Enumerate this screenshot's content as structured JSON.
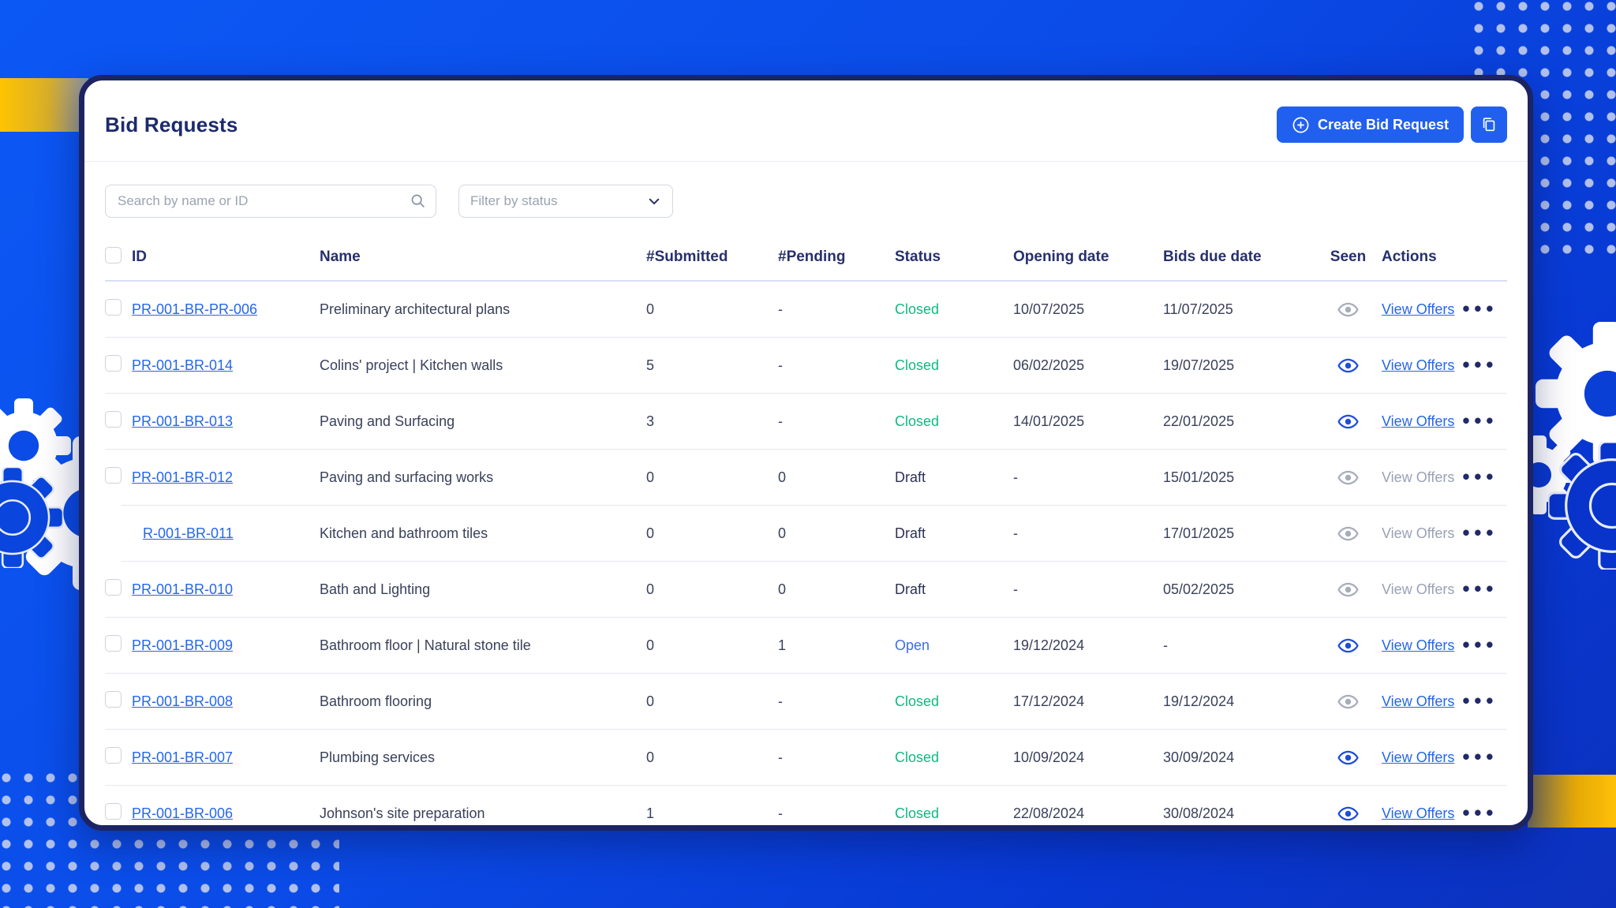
{
  "page": {
    "title": "Bid Requests"
  },
  "header": {
    "create_label": "Create Bid Request"
  },
  "filters": {
    "search_placeholder": "Search by name or ID",
    "status_placeholder": "Filter by status"
  },
  "icons": {
    "create": "plus-circle-icon",
    "duplicate": "copy-icon",
    "search": "search-icon",
    "filter": "chevron-down-icon",
    "seen": "eye-icon",
    "row_menu": "ellipsis-icon",
    "ellipsis_glyph": "•••"
  },
  "colors": {
    "accent_blue": "#2160ef",
    "link_blue": "#2566eb",
    "closed_green": "#10b981",
    "open_blue": "#3e6bf0",
    "draft_navy": "#2b3154",
    "gold": "#ffc107",
    "card_border_navy": "#1d2463",
    "background_blue": "#0b4ce8"
  },
  "table": {
    "columns": [
      "ID",
      "Name",
      "#Submitted",
      "#Pending",
      "Status",
      "Opening date",
      "Bids due date",
      "Seen",
      "Actions"
    ],
    "view_offers_label": "View Offers",
    "rows": [
      {
        "id": "PR-001-BR-PR-006",
        "name": "Preliminary architectural plans",
        "submitted": "0",
        "pending": "-",
        "status": "Closed",
        "opening_date": "10/07/2025",
        "bids_due_date": "11/07/2025",
        "seen": false,
        "view_offers_enabled": true,
        "checkbox": true,
        "sub": false
      },
      {
        "id": "PR-001-BR-014",
        "name": "Colins' project | Kitchen walls",
        "submitted": "5",
        "pending": "-",
        "status": "Closed",
        "opening_date": "06/02/2025",
        "bids_due_date": "19/07/2025",
        "seen": true,
        "view_offers_enabled": true,
        "checkbox": true,
        "sub": false
      },
      {
        "id": "PR-001-BR-013",
        "name": "Paving and Surfacing",
        "submitted": "3",
        "pending": "-",
        "status": "Closed",
        "opening_date": "14/01/2025",
        "bids_due_date": "22/01/2025",
        "seen": true,
        "view_offers_enabled": true,
        "checkbox": true,
        "sub": false
      },
      {
        "id": "PR-001-BR-012",
        "name": "Paving and surfacing works",
        "submitted": "0",
        "pending": "0",
        "status": "Draft",
        "opening_date": "-",
        "bids_due_date": "15/01/2025",
        "seen": false,
        "view_offers_enabled": false,
        "checkbox": true,
        "sub": false
      },
      {
        "id": "R-001-BR-011",
        "name": "Kitchen and bathroom tiles",
        "submitted": "0",
        "pending": "0",
        "status": "Draft",
        "opening_date": "-",
        "bids_due_date": "17/01/2025",
        "seen": false,
        "view_offers_enabled": false,
        "checkbox": false,
        "sub": true
      },
      {
        "id": "PR-001-BR-010",
        "name": "Bath and Lighting",
        "submitted": "0",
        "pending": "0",
        "status": "Draft",
        "opening_date": "-",
        "bids_due_date": "05/02/2025",
        "seen": false,
        "view_offers_enabled": false,
        "checkbox": true,
        "sub": false
      },
      {
        "id": "PR-001-BR-009",
        "name": "Bathroom floor | Natural stone tile",
        "submitted": "0",
        "pending": "1",
        "status": "Open",
        "opening_date": "19/12/2024",
        "bids_due_date": "-",
        "seen": true,
        "view_offers_enabled": true,
        "checkbox": true,
        "sub": false
      },
      {
        "id": "PR-001-BR-008",
        "name": "Bathroom flooring",
        "submitted": "0",
        "pending": "-",
        "status": "Closed",
        "opening_date": "17/12/2024",
        "bids_due_date": "19/12/2024",
        "seen": false,
        "view_offers_enabled": true,
        "checkbox": true,
        "sub": false
      },
      {
        "id": "PR-001-BR-007",
        "name": "Plumbing services",
        "submitted": "0",
        "pending": "-",
        "status": "Closed",
        "opening_date": "10/09/2024",
        "bids_due_date": "30/09/2024",
        "seen": true,
        "view_offers_enabled": true,
        "checkbox": true,
        "sub": false
      },
      {
        "id": "PR-001-BR-006",
        "name": "Johnson's site preparation",
        "submitted": "1",
        "pending": "-",
        "status": "Closed",
        "opening_date": "22/08/2024",
        "bids_due_date": "30/08/2024",
        "seen": true,
        "view_offers_enabled": true,
        "checkbox": true,
        "sub": false
      }
    ]
  }
}
